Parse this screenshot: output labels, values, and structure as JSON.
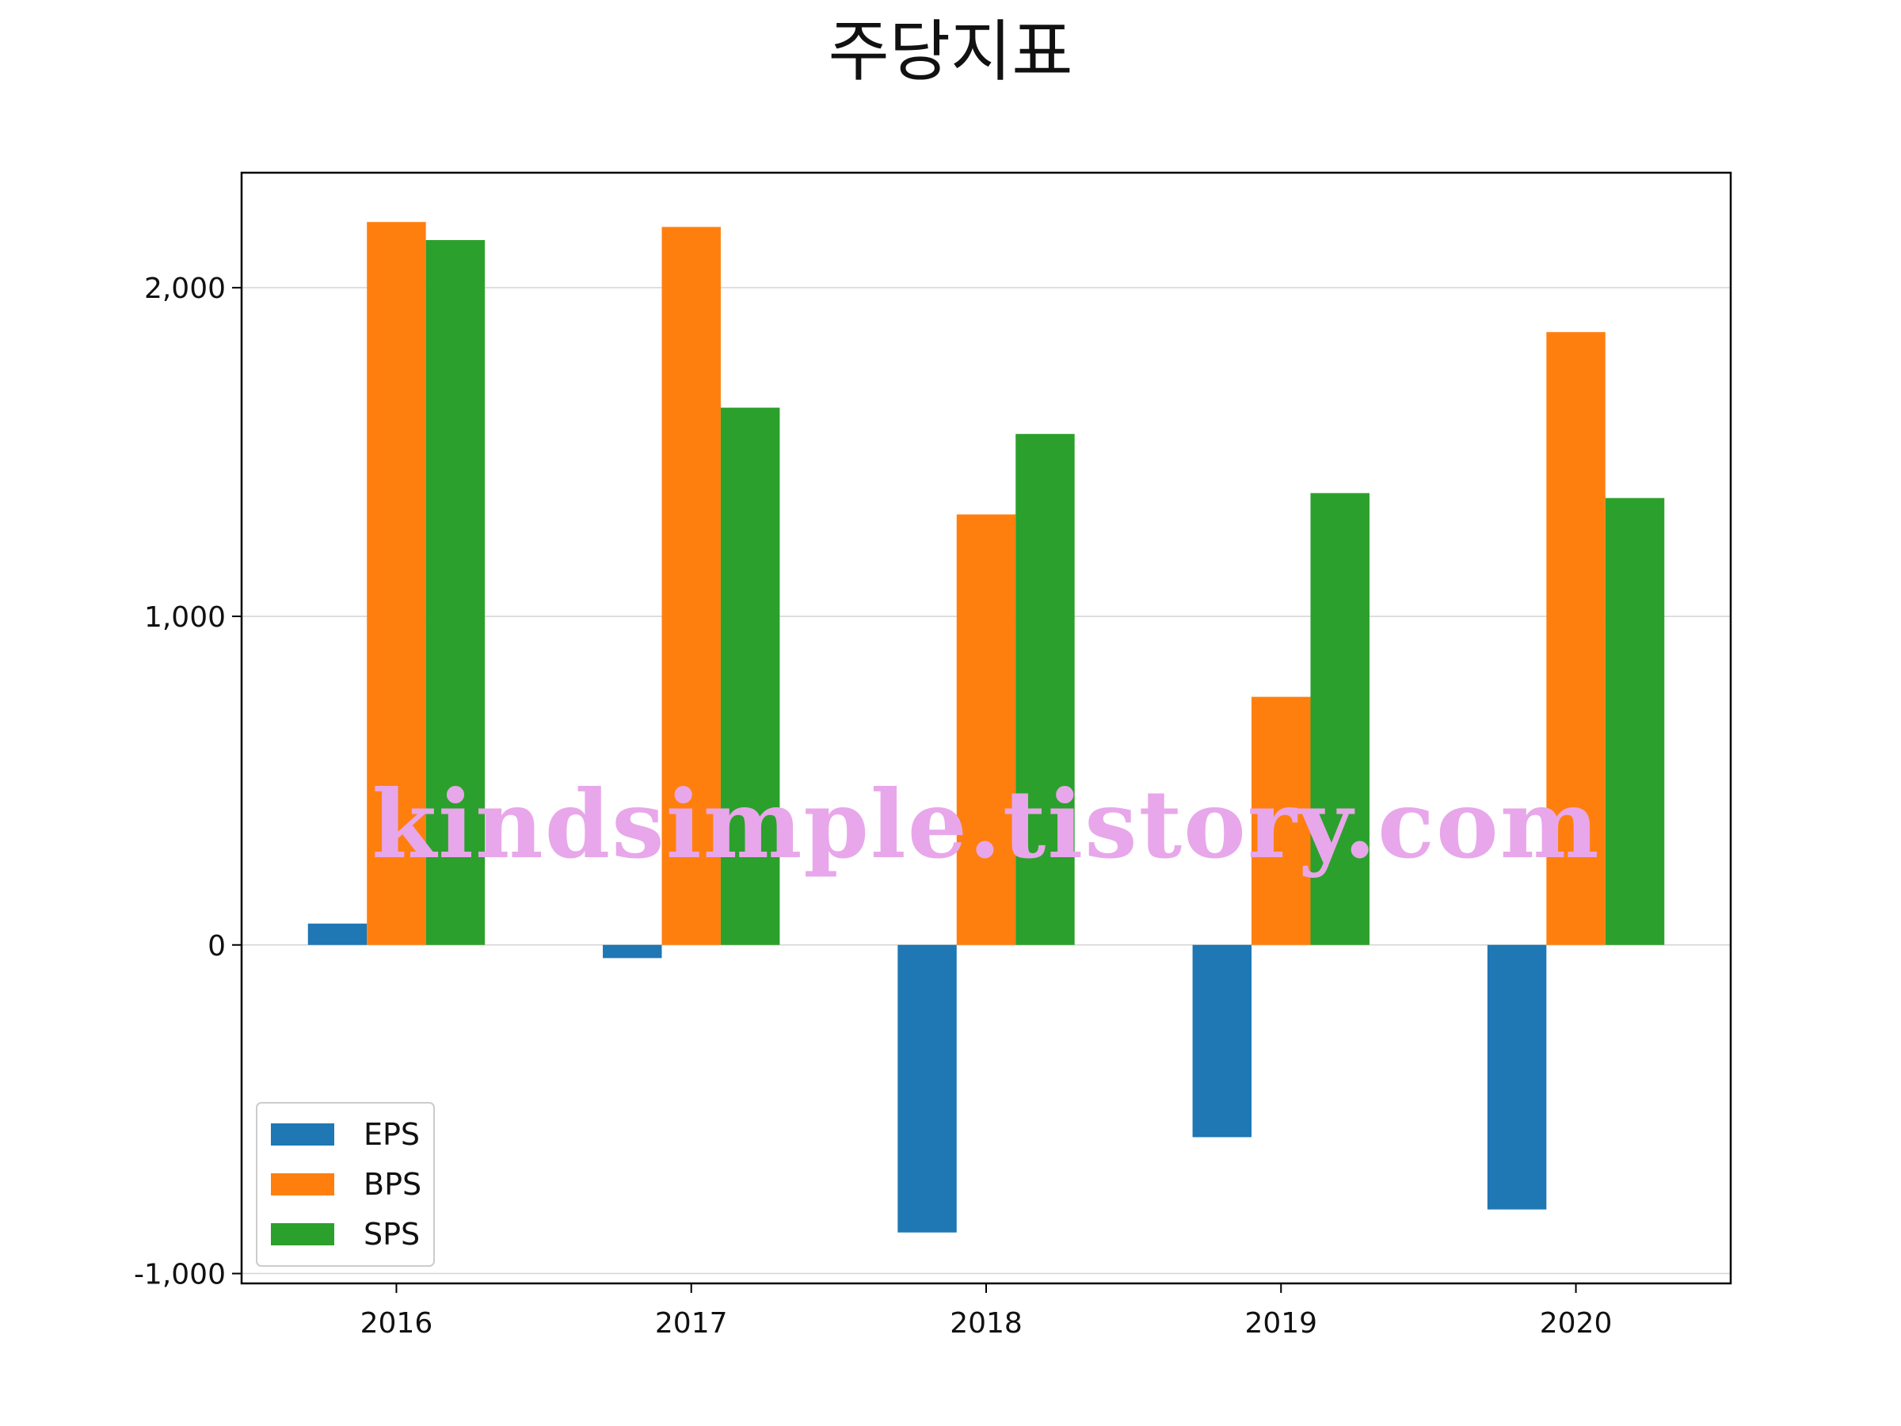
{
  "chart_data": {
    "type": "bar",
    "title": "주당지표",
    "xlabel": "",
    "ylabel": "",
    "categories": [
      "2016",
      "2017",
      "2018",
      "2019",
      "2020"
    ],
    "series": [
      {
        "name": "EPS",
        "color": "#1f77b4",
        "values": [
          65,
          -40,
          -875,
          -585,
          -805
        ]
      },
      {
        "name": "BPS",
        "color": "#ff7f0e",
        "values": [
          2200,
          2185,
          1310,
          755,
          1865
        ]
      },
      {
        "name": "SPS",
        "color": "#2ca02c",
        "values": [
          2145,
          1635,
          1555,
          1375,
          1360
        ]
      }
    ],
    "ylim": [
      -1030,
      2350
    ],
    "yticks": [
      -1000,
      0,
      1000,
      2000
    ],
    "ytick_labels": [
      "-1,000",
      "0",
      "1,000",
      "2,000"
    ],
    "grid": "horizontal",
    "legend_position": "lower-left",
    "watermark": "kindsimple.tistory.com"
  }
}
